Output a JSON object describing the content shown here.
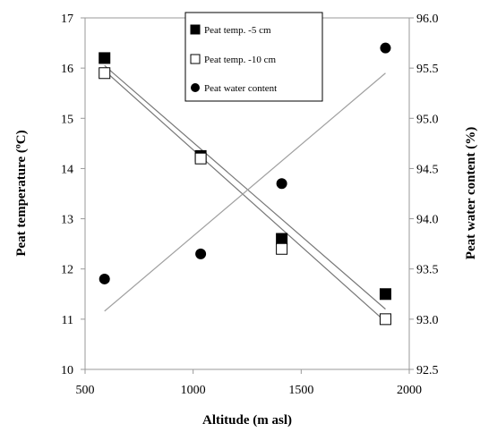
{
  "chart_data": {
    "type": "scatter",
    "xlabel": "Altitude (m asl)",
    "ylabel": "Peat temperature (ºC)",
    "y2label": "Peat water content (%)",
    "xlim": [
      500,
      2000
    ],
    "ylim": [
      10,
      17
    ],
    "y2lim": [
      92.5,
      96.0
    ],
    "xticks": [
      "500",
      "1000",
      "1500",
      "2000"
    ],
    "yticks": [
      "10",
      "11",
      "12",
      "13",
      "14",
      "15",
      "16",
      "17"
    ],
    "y2ticks": [
      "92.5",
      "93.0",
      "93.5",
      "94.0",
      "94.5",
      "95.0",
      "95.5",
      "96.0"
    ],
    "grid": false,
    "legend_position": "top-center",
    "series": [
      {
        "name": "Peat temp. -5 cm",
        "axis": "left",
        "marker": "filled-square",
        "color": "#000000",
        "x": [
          590,
          1035,
          1410,
          1890
        ],
        "y": [
          16.2,
          14.25,
          12.6,
          11.5
        ],
        "trendline": {
          "x": [
            590,
            1890
          ],
          "y": [
            16.05,
            11.2
          ]
        }
      },
      {
        "name": "Peat temp. -10 cm",
        "axis": "left",
        "marker": "open-square",
        "color": "#000000",
        "x": [
          590,
          1035,
          1410,
          1890
        ],
        "y": [
          15.9,
          14.2,
          12.4,
          11.0
        ],
        "trendline": {
          "x": [
            590,
            1890
          ],
          "y": [
            15.95,
            10.95
          ]
        }
      },
      {
        "name": "Peat water content",
        "axis": "right",
        "marker": "filled-circle",
        "color": "#000000",
        "x": [
          590,
          1035,
          1410,
          1890
        ],
        "y": [
          93.4,
          93.65,
          94.35,
          95.7
        ],
        "trendline": {
          "x": [
            590,
            1890
          ],
          "y": [
            93.08,
            95.45
          ]
        }
      }
    ]
  }
}
